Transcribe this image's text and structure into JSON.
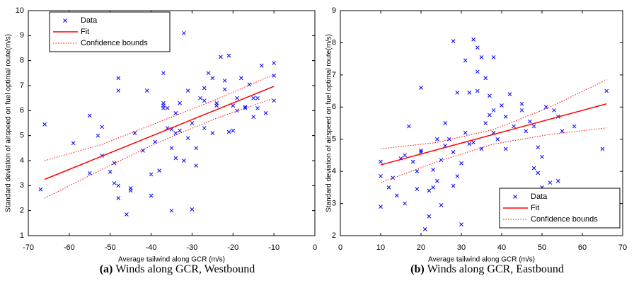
{
  "chart_data": [
    {
      "type": "scatter",
      "xlabel": "Average tailwind along GCR (m/s)",
      "ylabel": "Standard deviation of airspeed on fuel optimal route(m/s)",
      "caption_label": "(a)",
      "caption": "Winds along GCR, Westbound",
      "xlim": [
        -70,
        0
      ],
      "ylim": [
        1,
        10
      ],
      "xticks": [
        -70,
        -60,
        -50,
        -40,
        -30,
        -20,
        -10,
        0
      ],
      "yticks": [
        1,
        2,
        3,
        4,
        5,
        6,
        7,
        8,
        9,
        10
      ],
      "legend": "upper left",
      "series": [
        {
          "name": "Data",
          "color": "#0000ff",
          "marker": "x",
          "x": [
            -66,
            -67,
            -59,
            -55,
            -55,
            -53,
            -52,
            -52,
            -50,
            -49,
            -49,
            -48,
            -48,
            -48,
            -48,
            -45,
            -45,
            -44,
            -46,
            -42,
            -41,
            -40,
            -40,
            -39,
            -38,
            -37,
            -37,
            -37,
            -37,
            -36,
            -36,
            -35,
            -35,
            -34,
            -35,
            -34,
            -34,
            -33,
            -33,
            -32,
            -32,
            -31,
            -30,
            -30,
            -29,
            -29,
            -28,
            -27,
            -27,
            -26,
            -25,
            -25,
            -24,
            -24,
            -23,
            -22,
            -22,
            -21,
            -21,
            -20,
            -20,
            -19,
            -19,
            -18,
            -17,
            -17,
            -16,
            -15,
            -15,
            -14,
            -14,
            -13,
            -12,
            -10,
            -10,
            -10,
            -27,
            -31
          ],
          "values": [
            5.45,
            2.85,
            4.7,
            5.8,
            3.5,
            5.0,
            5.35,
            4.2,
            3.55,
            3.1,
            3.9,
            7.3,
            6.8,
            3.0,
            2.5,
            2.9,
            2.8,
            5.1,
            1.85,
            4.4,
            6.8,
            3.45,
            2.6,
            4.75,
            3.6,
            7.5,
            6.3,
            6.2,
            6.1,
            6.1,
            5.3,
            4.5,
            5.25,
            4.1,
            2.0,
            5.1,
            5.9,
            5.2,
            6.3,
            4.0,
            9.1,
            6.8,
            2.05,
            5.5,
            3.8,
            4.5,
            6.5,
            5.3,
            6.9,
            7.5,
            5.1,
            7.3,
            6.3,
            6.2,
            8.15,
            7.2,
            6.85,
            8.2,
            5.15,
            6.2,
            5.2,
            6.0,
            6.5,
            7.3,
            6.1,
            6.15,
            7.05,
            6.5,
            5.75,
            6.5,
            6.1,
            7.8,
            5.9,
            7.9,
            7.4,
            6.4,
            6.4,
            4.9
          ]
        },
        {
          "name": "Fit",
          "color": "#ff0000",
          "line": "solid",
          "x": [
            -66,
            -10
          ],
          "values": [
            3.25,
            6.97
          ]
        },
        {
          "name": "Confidence bounds",
          "color": "#ff0000",
          "line": "dotted",
          "x": [
            -66,
            -52,
            -38,
            -24,
            -10
          ],
          "values": [
            4.0,
            4.65,
            5.55,
            6.45,
            7.45
          ],
          "lower": [
            2.5,
            3.65,
            4.75,
            5.7,
            6.5
          ]
        }
      ]
    },
    {
      "type": "scatter",
      "xlabel": "Average tailwind along GCR (m/s)",
      "ylabel": "Standard deviation of airspeed on fuel optimal route(m/s)",
      "caption_label": "(b)",
      "caption": "Winds along GCR, Eastbound",
      "xlim": [
        0,
        70
      ],
      "ylim": [
        2,
        9
      ],
      "xticks": [
        0,
        10,
        20,
        30,
        40,
        50,
        60,
        70
      ],
      "yticks": [
        2,
        3,
        4,
        5,
        6,
        7,
        8,
        9
      ],
      "legend": "lower right",
      "series": [
        {
          "name": "Data",
          "color": "#0000ff",
          "marker": "x",
          "x": [
            10,
            10,
            10,
            12,
            13,
            14,
            15,
            16,
            16,
            17,
            18,
            19,
            19,
            20,
            20,
            20,
            21,
            22,
            22,
            23,
            23,
            24,
            24,
            25,
            25,
            26,
            26,
            27,
            28,
            28,
            28,
            29,
            29,
            30,
            30,
            31,
            31,
            32,
            32,
            33,
            33,
            34,
            34,
            34,
            35,
            35,
            36,
            36,
            37,
            37,
            38,
            38,
            38,
            39,
            40,
            41,
            41,
            42,
            43,
            45,
            45,
            46,
            47,
            48,
            48,
            49,
            49,
            50,
            50,
            51,
            52,
            53,
            54,
            54,
            55,
            58,
            65,
            66
          ],
          "values": [
            4.3,
            3.85,
            2.9,
            3.5,
            3.8,
            3.25,
            4.4,
            4.5,
            3.0,
            5.4,
            4.3,
            3.45,
            4.0,
            6.6,
            4.6,
            4.65,
            2.2,
            2.6,
            3.4,
            4.05,
            3.5,
            5.0,
            3.7,
            4.35,
            2.95,
            4.8,
            5.5,
            5.0,
            8.05,
            4.6,
            3.55,
            3.85,
            6.45,
            2.35,
            4.25,
            7.45,
            5.2,
            6.45,
            4.85,
            8.1,
            4.9,
            7.85,
            6.5,
            7.1,
            7.55,
            4.7,
            6.9,
            5.5,
            5.75,
            6.35,
            7.55,
            5.9,
            5.2,
            5.0,
            6.05,
            4.7,
            5.7,
            6.4,
            5.4,
            6.1,
            5.9,
            5.25,
            5.55,
            4.1,
            5.4,
            3.95,
            4.75,
            4.45,
            3.5,
            6.0,
            3.65,
            5.9,
            5.7,
            3.7,
            5.25,
            5.4,
            4.7,
            6.5
          ]
        },
        {
          "name": "Fit",
          "color": "#ff0000",
          "line": "solid",
          "x": [
            10,
            66
          ],
          "values": [
            4.2,
            6.1
          ]
        },
        {
          "name": "Confidence bounds",
          "color": "#ff0000",
          "line": "dotted",
          "x": [
            10,
            24,
            38,
            52,
            66
          ],
          "values": [
            4.7,
            4.9,
            5.3,
            6.0,
            6.85
          ],
          "lower": [
            3.65,
            4.3,
            4.85,
            5.15,
            5.35
          ]
        }
      ]
    }
  ]
}
